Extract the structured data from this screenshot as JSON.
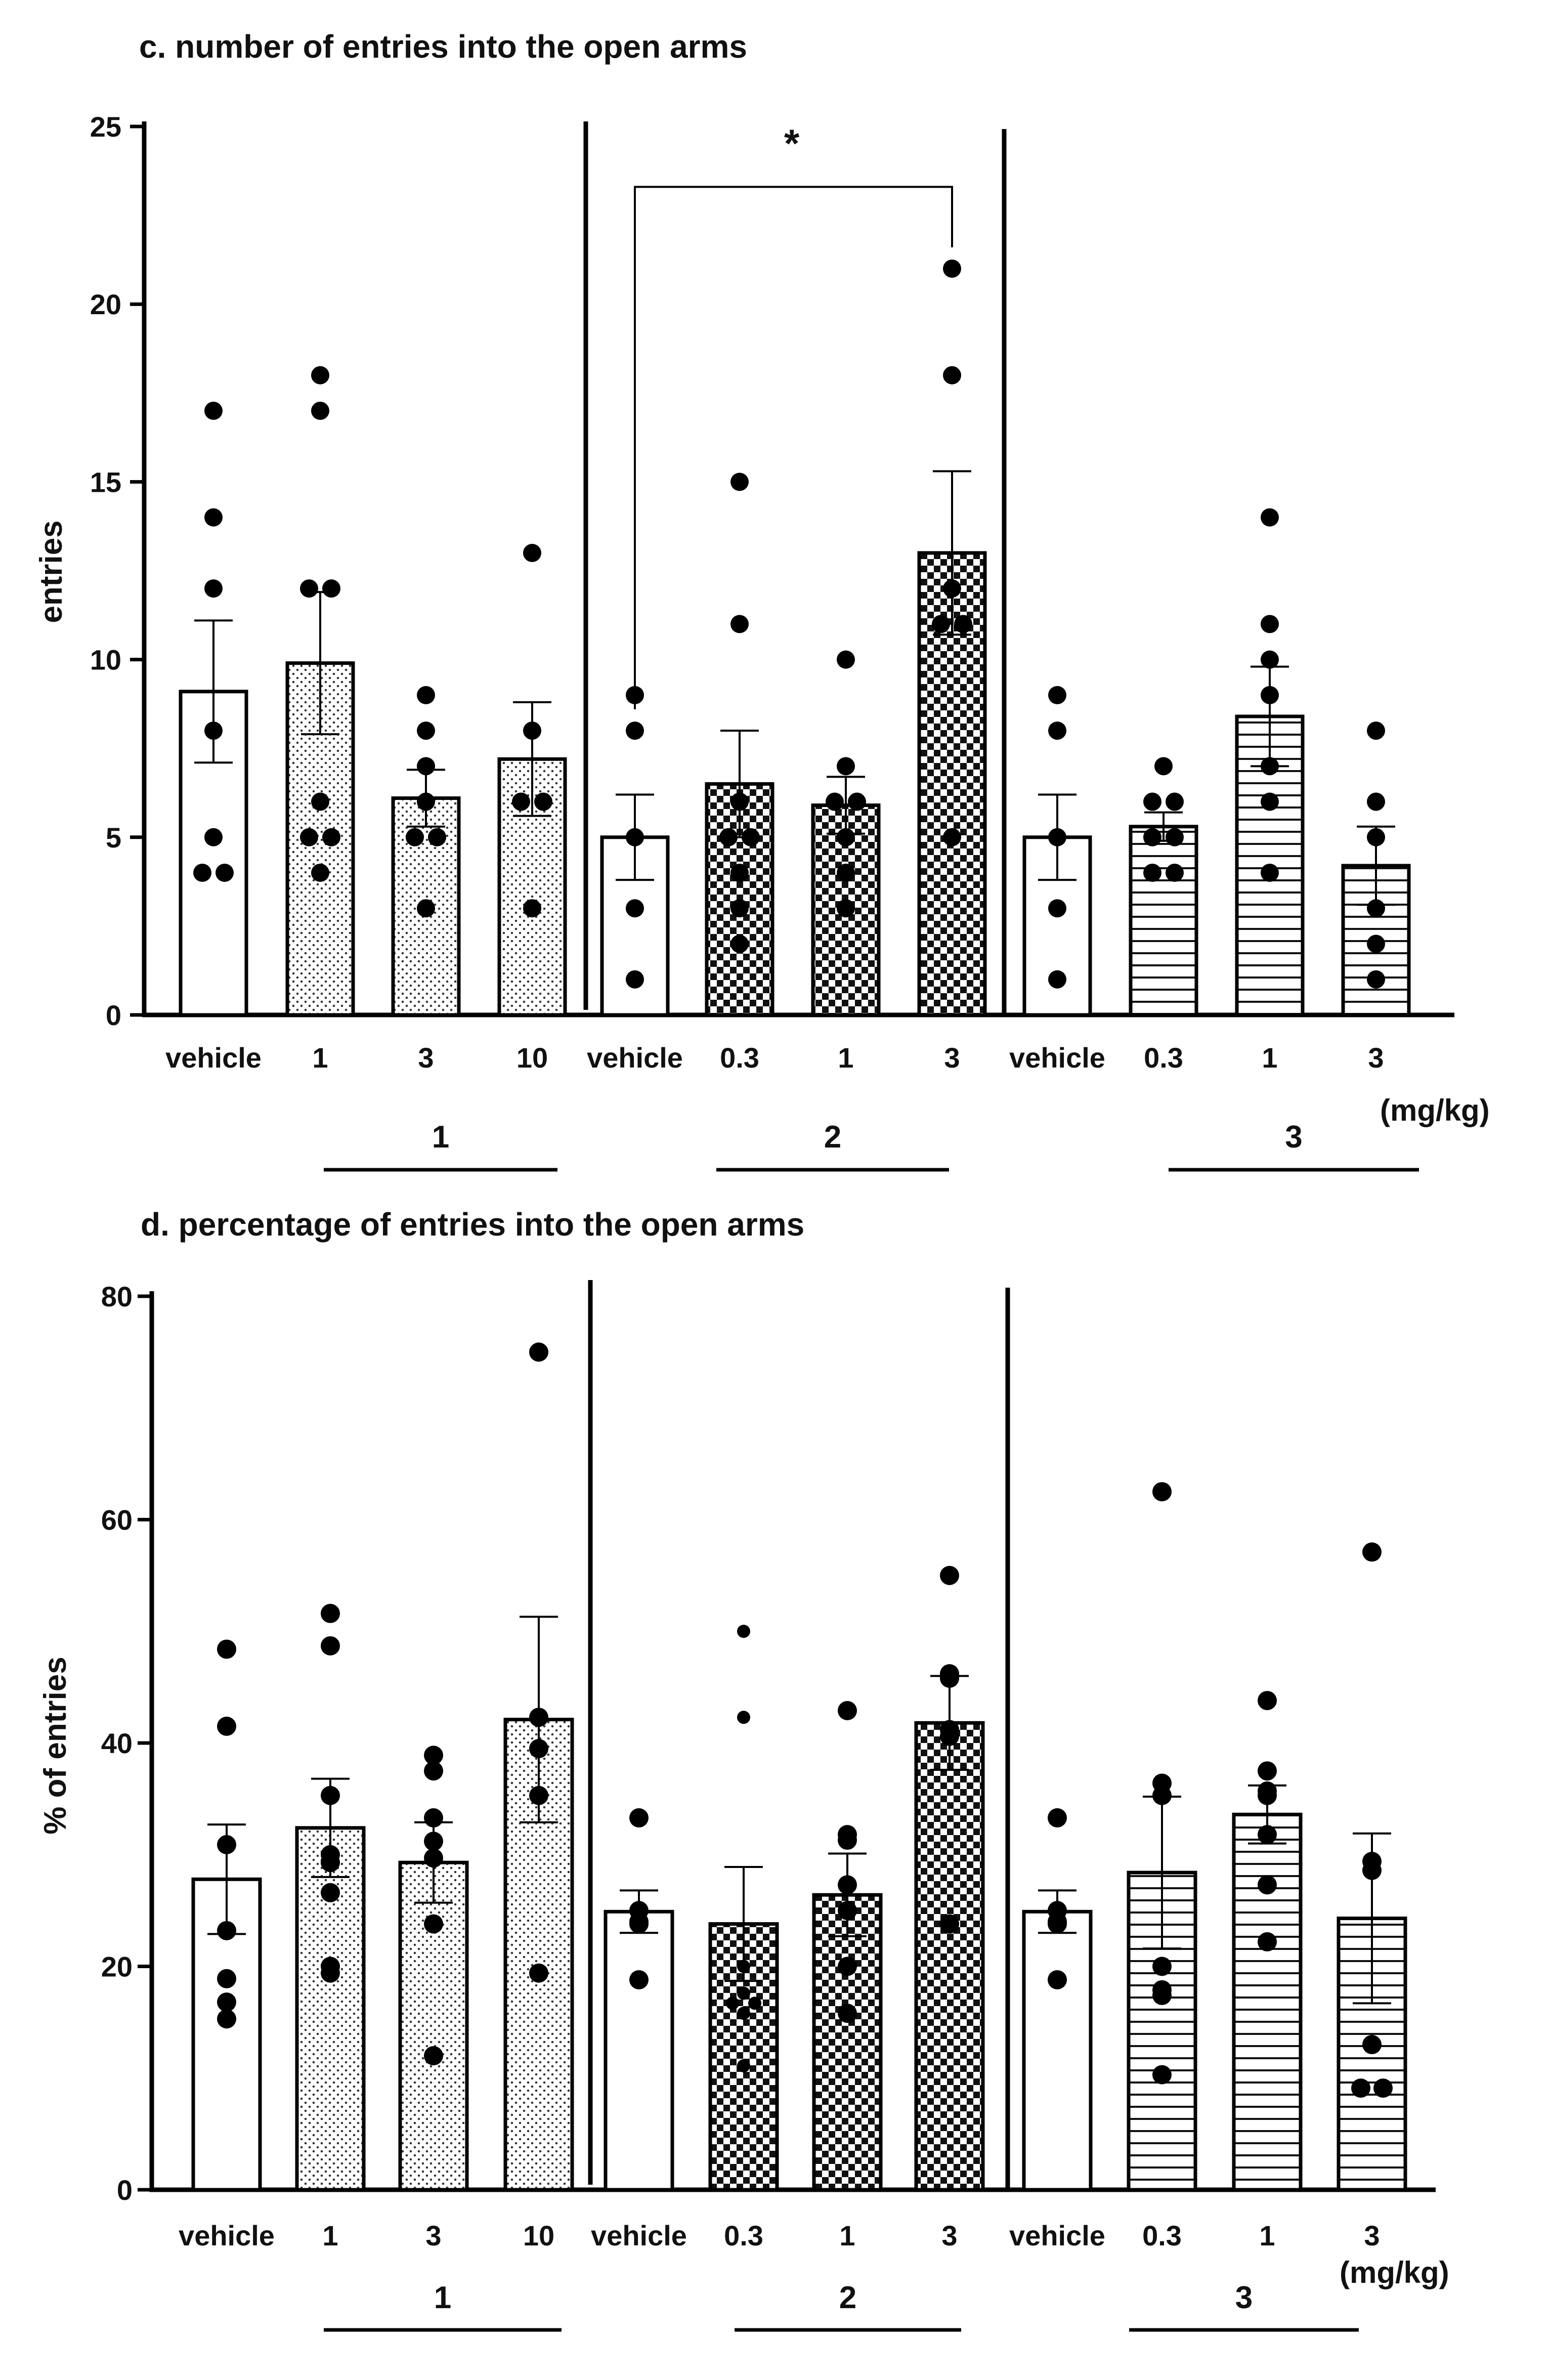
{
  "chart_data": [
    {
      "id": "c",
      "type": "bar",
      "title": "c. number of entries into the open arms",
      "ylabel": "entries",
      "xlabel": "",
      "ylim": [
        0,
        25
      ],
      "yticks": [
        0,
        5,
        10,
        15,
        20,
        25
      ],
      "unit_label": "(mg/kg)",
      "groups": [
        {
          "name": "1",
          "pattern": "dots",
          "categories": [
            "vehicle",
            "1",
            "3",
            "10"
          ]
        },
        {
          "name": "2",
          "pattern": "checker",
          "categories": [
            "vehicle",
            "0.3",
            "1",
            "3"
          ]
        },
        {
          "name": "3",
          "pattern": "hlines",
          "categories": [
            "vehicle",
            "0.3",
            "1",
            "3"
          ]
        }
      ],
      "bars": [
        {
          "group": 0,
          "label": "vehicle",
          "mean": 9.1,
          "sem": 2.0,
          "points": [
            17,
            14,
            12,
            8,
            5,
            4,
            4
          ]
        },
        {
          "group": 0,
          "label": "1",
          "mean": 9.9,
          "sem": 2.0,
          "points": [
            18,
            17,
            12,
            12,
            6,
            5,
            5,
            4
          ]
        },
        {
          "group": 0,
          "label": "3",
          "mean": 6.1,
          "sem": 0.8,
          "points": [
            9,
            8,
            7,
            6,
            5,
            5,
            3
          ]
        },
        {
          "group": 0,
          "label": "10",
          "mean": 7.2,
          "sem": 1.6,
          "points": [
            13,
            8,
            6,
            6,
            3
          ]
        },
        {
          "group": 1,
          "label": "vehicle",
          "mean": 5.0,
          "sem": 1.2,
          "points": [
            9,
            8,
            5,
            3,
            1
          ]
        },
        {
          "group": 1,
          "label": "0.3",
          "mean": 6.5,
          "sem": 1.5,
          "points": [
            15,
            11,
            6,
            5,
            5,
            4,
            3,
            2
          ]
        },
        {
          "group": 1,
          "label": "1",
          "mean": 5.9,
          "sem": 0.8,
          "points": [
            10,
            7,
            6,
            6,
            5,
            4,
            3
          ]
        },
        {
          "group": 1,
          "label": "3",
          "mean": 13.0,
          "sem": 2.3,
          "points": [
            21,
            18,
            12,
            11,
            11,
            5
          ]
        },
        {
          "group": 2,
          "label": "vehicle",
          "mean": 5.0,
          "sem": 1.2,
          "points": [
            9,
            8,
            5,
            3,
            1
          ]
        },
        {
          "group": 2,
          "label": "0.3",
          "mean": 5.3,
          "sem": 0.4,
          "points": [
            7,
            6,
            6,
            5,
            5,
            4,
            4
          ]
        },
        {
          "group": 2,
          "label": "1",
          "mean": 8.4,
          "sem": 1.4,
          "points": [
            14,
            11,
            10,
            9,
            7,
            6,
            4
          ]
        },
        {
          "group": 2,
          "label": "3",
          "mean": 4.2,
          "sem": 1.1,
          "points": [
            8,
            6,
            5,
            3,
            2,
            1
          ]
        }
      ],
      "significance": [
        {
          "from_bar": 4,
          "to_bar": 7,
          "label": "*"
        }
      ]
    },
    {
      "id": "d",
      "type": "bar",
      "title": "d. percentage of entries into the open arms",
      "ylabel": "% of entries",
      "xlabel": "",
      "ylim": [
        0,
        80
      ],
      "yticks": [
        0,
        20,
        40,
        60,
        80
      ],
      "unit_label": "(mg/kg)",
      "groups": [
        {
          "name": "1",
          "pattern": "dots",
          "categories": [
            "vehicle",
            "1",
            "3",
            "10"
          ]
        },
        {
          "name": "2",
          "pattern": "checker",
          "categories": [
            "vehicle",
            "0.3",
            "1",
            "3"
          ]
        },
        {
          "name": "3",
          "pattern": "hlines",
          "categories": [
            "vehicle",
            "0.3",
            "1",
            "3"
          ]
        }
      ],
      "bars": [
        {
          "group": 0,
          "label": "vehicle",
          "mean": 27.8,
          "sem": 4.9,
          "points": [
            48.4,
            41.5,
            30.9,
            23.2,
            18.9,
            16.8,
            15.3
          ]
        },
        {
          "group": 0,
          "label": "1",
          "mean": 32.4,
          "sem": 4.4,
          "points": [
            51.6,
            48.7,
            35.3,
            30.0,
            29.3,
            26.6,
            20.0,
            19.4
          ]
        },
        {
          "group": 0,
          "label": "3",
          "mean": 29.3,
          "sem": 3.6,
          "points": [
            38.9,
            37.5,
            33.3,
            31.2,
            29.7,
            23.8,
            12.0
          ]
        },
        {
          "group": 0,
          "label": "10",
          "mean": 42.1,
          "sem": 9.2,
          "points": [
            75.0,
            42.3,
            39.5,
            35.3,
            19.4
          ]
        },
        {
          "group": 1,
          "label": "vehicle",
          "mean": 24.9,
          "sem": 1.9,
          "points": [
            33.3,
            25.0,
            24.0,
            23.8,
            18.8
          ]
        },
        {
          "group": 1,
          "label": "0.3",
          "mean": 23.8,
          "sem": 5.1,
          "points": [
            50.0,
            42.3,
            20.0,
            17.6,
            16.7,
            16.7,
            15.8,
            11.1
          ]
        },
        {
          "group": 1,
          "label": "1",
          "mean": 26.4,
          "sem": 3.7,
          "points": [
            42.9,
            31.8,
            31.3,
            27.3,
            25.0,
            20.0,
            15.8
          ]
        },
        {
          "group": 1,
          "label": "3",
          "mean": 41.8,
          "sem": 4.2,
          "points": [
            55.0,
            46.2,
            45.8,
            41.2,
            40.6,
            23.8
          ]
        },
        {
          "group": 2,
          "label": "vehicle",
          "mean": 24.9,
          "sem": 1.9,
          "points": [
            33.3,
            25.0,
            24.0,
            23.8,
            18.8
          ]
        },
        {
          "group": 2,
          "label": "0.3",
          "mean": 28.4,
          "sem": 6.8,
          "points": [
            62.5,
            36.4,
            35.3,
            20.0,
            17.9,
            17.4,
            10.3
          ]
        },
        {
          "group": 2,
          "label": "1",
          "mean": 33.6,
          "sem": 2.6,
          "points": [
            43.8,
            37.5,
            35.7,
            35.3,
            31.8,
            27.3,
            22.2
          ]
        },
        {
          "group": 2,
          "label": "3",
          "mean": 24.3,
          "sem": 7.6,
          "points": [
            57.1,
            29.4,
            28.6,
            13.0,
            9.1,
            9.1
          ]
        }
      ],
      "significance": []
    }
  ]
}
